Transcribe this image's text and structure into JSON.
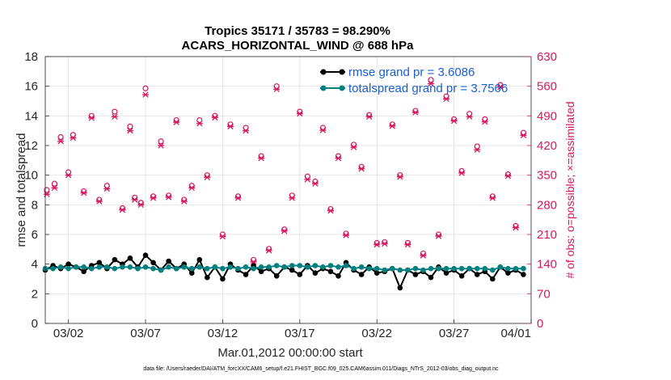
{
  "chart_data": {
    "type": "line",
    "title": "Tropics 35171 / 35783 = 98.290%",
    "subtitle": "ACARS_HORIZONTAL_WIND @ 688 hPa",
    "xlabel": "Mar.01,2012 00:00:00 start",
    "ylabel": "rmse and totalspread",
    "ylabel_right": "# of obs: o=possible; ×=assimilated",
    "footnote": "data file: /Users/raeder/DAI/ATM_forcXX/CAM6_setup/f.e21.FHIST_BGC.f09_025.CAM6assim.011/Diags_NTrS_2012-03/obs_diag_output.nc",
    "xlim": [
      0.5,
      32
    ],
    "x_ticks": [
      2,
      7,
      12,
      17,
      22,
      27,
      32
    ],
    "x_tick_labels": [
      "03/02",
      "03/07",
      "03/12",
      "03/17",
      "03/22",
      "03/27",
      "04/01"
    ],
    "ylim": [
      0,
      18
    ],
    "y_ticks": [
      0,
      2,
      4,
      6,
      8,
      10,
      12,
      14,
      16,
      18
    ],
    "ylim_right": [
      0,
      630
    ],
    "y_ticks_right": [
      0,
      70,
      140,
      210,
      280,
      350,
      420,
      490,
      560,
      630
    ],
    "grid": true,
    "legend_position": "top-right",
    "legend": [
      "rmse grand pr = 3.6086",
      "totalspread grand pr = 3.7566"
    ],
    "colors": {
      "rmse": "#000000",
      "totalspread": "#008080",
      "obs": "#d6175f",
      "grid": "#dcdcdc",
      "legend_text": "#1a5fd0"
    },
    "series": [
      {
        "name": "rmse",
        "axis": "left",
        "x": [
          0.5,
          1.0,
          1.5,
          2.0,
          2.5,
          3.0,
          3.5,
          4.0,
          4.5,
          5.0,
          5.5,
          6.0,
          6.5,
          7.0,
          7.5,
          8.0,
          8.5,
          9.0,
          9.5,
          10.0,
          10.5,
          11.0,
          11.5,
          12.0,
          12.5,
          13.0,
          13.5,
          14.0,
          14.5,
          15.0,
          15.5,
          16.0,
          16.5,
          17.0,
          17.5,
          18.0,
          18.5,
          19.0,
          19.5,
          20.0,
          20.5,
          21.0,
          21.5,
          22.0,
          22.5,
          23.0,
          23.5,
          24.0,
          24.5,
          25.0,
          25.5,
          26.0,
          26.5,
          27.0,
          27.5,
          28.0,
          28.5,
          29.0,
          29.5,
          30.0,
          30.5,
          31.0,
          31.5
        ],
        "values": [
          3.6,
          3.9,
          3.7,
          4.0,
          3.8,
          3.5,
          3.9,
          4.1,
          3.7,
          4.3,
          4.0,
          4.4,
          3.8,
          4.6,
          4.1,
          3.6,
          4.2,
          3.7,
          4.0,
          3.4,
          4.3,
          3.1,
          3.8,
          3.0,
          4.0,
          3.6,
          3.3,
          3.9,
          3.5,
          3.7,
          3.2,
          3.8,
          3.6,
          3.3,
          3.9,
          3.4,
          3.7,
          3.5,
          3.2,
          4.1,
          3.6,
          3.3,
          3.8,
          3.4,
          3.5,
          3.7,
          2.4,
          3.6,
          3.3,
          3.5,
          3.1,
          3.8,
          3.4,
          3.6,
          3.2,
          3.7,
          3.3,
          3.5,
          3.0,
          3.8,
          3.4,
          3.6,
          3.3
        ]
      },
      {
        "name": "totalspread",
        "axis": "left",
        "x": [
          0.5,
          1.0,
          1.5,
          2.0,
          2.5,
          3.0,
          3.5,
          4.0,
          4.5,
          5.0,
          5.5,
          6.0,
          6.5,
          7.0,
          7.5,
          8.0,
          8.5,
          9.0,
          9.5,
          10.0,
          10.5,
          11.0,
          11.5,
          12.0,
          12.5,
          13.0,
          13.5,
          14.0,
          14.5,
          15.0,
          15.5,
          16.0,
          16.5,
          17.0,
          17.5,
          18.0,
          18.5,
          19.0,
          19.5,
          20.0,
          20.5,
          21.0,
          21.5,
          22.0,
          22.5,
          23.0,
          23.5,
          24.0,
          24.5,
          25.0,
          25.5,
          26.0,
          26.5,
          27.0,
          27.5,
          28.0,
          28.5,
          29.0,
          29.5,
          30.0,
          30.5,
          31.0,
          31.5
        ],
        "values": [
          3.7,
          3.7,
          3.8,
          3.7,
          3.8,
          3.8,
          3.7,
          3.8,
          3.8,
          3.7,
          3.8,
          3.8,
          3.7,
          3.8,
          3.7,
          3.6,
          3.8,
          3.7,
          3.8,
          3.7,
          3.8,
          3.7,
          3.8,
          3.7,
          3.8,
          3.7,
          3.8,
          3.7,
          3.8,
          3.8,
          3.9,
          3.8,
          3.9,
          3.9,
          3.8,
          3.9,
          3.8,
          3.9,
          3.8,
          3.9,
          3.7,
          3.8,
          3.7,
          3.7,
          3.6,
          3.7,
          3.6,
          3.6,
          3.7,
          3.6,
          3.7,
          3.7,
          3.7,
          3.7,
          3.7,
          3.7,
          3.7,
          3.7,
          3.6,
          3.8,
          3.7,
          3.7,
          3.7
        ]
      },
      {
        "name": "# obs possible (o)",
        "axis": "right",
        "x": [
          0.6,
          1.1,
          1.5,
          2.0,
          2.3,
          3.0,
          3.5,
          4.0,
          4.5,
          5.0,
          5.5,
          6.0,
          6.3,
          6.7,
          7.0,
          7.5,
          8.0,
          8.5,
          9.0,
          9.5,
          10.0,
          10.5,
          11.0,
          11.5,
          12.0,
          12.5,
          13.0,
          13.5,
          14.0,
          14.5,
          15.0,
          15.5,
          16.0,
          16.5,
          17.0,
          17.5,
          18.0,
          18.5,
          19.0,
          19.5,
          20.0,
          20.5,
          21.0,
          21.5,
          22.0,
          22.5,
          23.0,
          23.5,
          24.0,
          24.5,
          25.0,
          25.5,
          26.0,
          26.5,
          27.0,
          27.5,
          28.0,
          28.5,
          29.0,
          29.5,
          30.0,
          30.5,
          31.0,
          31.5
        ],
        "values": [
          315,
          330,
          440,
          357,
          445,
          312,
          490,
          292,
          325,
          500,
          272,
          465,
          297,
          285,
          555,
          300,
          430,
          302,
          480,
          292,
          325,
          480,
          350,
          490,
          210,
          470,
          300,
          462,
          150,
          395,
          176,
          560,
          222,
          302,
          500,
          347,
          335,
          462,
          270,
          395,
          212,
          422,
          370,
          492,
          190,
          192,
          470,
          350,
          190,
          502,
          165,
          575,
          210,
          536,
          482,
          360,
          495,
          418,
          482,
          300,
          563,
          352,
          230,
          450
        ]
      },
      {
        "name": "# obs assimilated (×)",
        "axis": "right",
        "x": [
          0.6,
          1.1,
          1.5,
          2.0,
          2.3,
          3.0,
          3.5,
          4.0,
          4.5,
          5.0,
          5.5,
          6.0,
          6.3,
          6.7,
          7.0,
          7.5,
          8.0,
          8.5,
          9.0,
          9.5,
          10.0,
          10.5,
          11.0,
          11.5,
          12.0,
          12.5,
          13.0,
          13.5,
          14.0,
          14.5,
          15.0,
          15.5,
          16.0,
          16.5,
          17.0,
          17.5,
          18.0,
          18.5,
          19.0,
          19.5,
          20.0,
          20.5,
          21.0,
          21.5,
          22.0,
          22.5,
          23.0,
          23.5,
          24.0,
          24.5,
          25.0,
          25.5,
          26.0,
          26.5,
          27.0,
          27.5,
          28.0,
          28.5,
          29.0,
          29.5,
          30.0,
          30.5,
          31.0,
          31.5
        ],
        "values": [
          305,
          320,
          430,
          350,
          438,
          308,
          485,
          288,
          318,
          488,
          268,
          455,
          292,
          280,
          540,
          296,
          420,
          298,
          475,
          288,
          320,
          472,
          345,
          486,
          205,
          465,
          296,
          455,
          145,
          390,
          172,
          553,
          218,
          296,
          495,
          340,
          330,
          456,
          266,
          390,
          208,
          416,
          365,
          488,
          186,
          188,
          466,
          346,
          186,
          498,
          160,
          566,
          206,
          530,
          478,
          355,
          488,
          410,
          476,
          296,
          558,
          348,
          226,
          444
        ]
      }
    ]
  }
}
